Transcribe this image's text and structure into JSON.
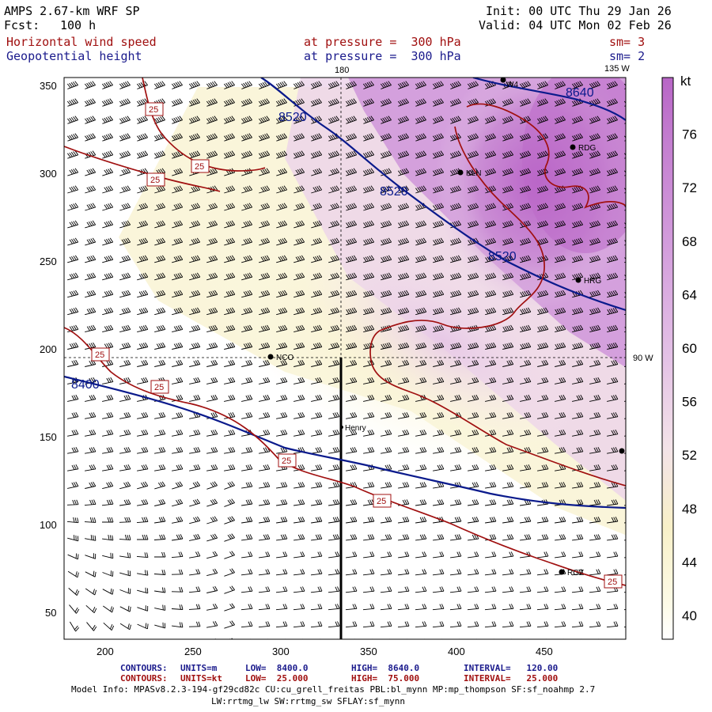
{
  "header": {
    "model": "AMPS 2.67-km WRF SP",
    "fcst_label": "Fcst:",
    "fcst_value": "100 h",
    "init": "Init: 00 UTC Thu 29 Jan 26",
    "valid": "Valid: 04 UTC Mon 02 Feb 26",
    "field1": "Horizontal wind speed",
    "field2": "Geopotential height",
    "pressure1": "at pressure =  300 hPa",
    "pressure2": "at pressure =  300 hPa",
    "sm1": "sm= 3",
    "sm2": "sm= 2"
  },
  "axes": {
    "x_ticks": [
      "200",
      "250",
      "300",
      "350",
      "400",
      "450"
    ],
    "y_ticks": [
      "50",
      "100",
      "150",
      "200",
      "250",
      "300",
      "350"
    ],
    "lon_labels": {
      "top_left": "180",
      "top_right": "135 W",
      "right": "90 W"
    }
  },
  "colorbar": {
    "unit": "kt",
    "ticks": [
      "40",
      "44",
      "48",
      "52",
      "56",
      "60",
      "64",
      "68",
      "72",
      "76"
    ]
  },
  "contour_labels": {
    "height": [
      "8640",
      "8520",
      "8520",
      "8520",
      "8400"
    ],
    "speed": [
      "25",
      "25",
      "25",
      "25",
      "25",
      "25",
      "25",
      "25",
      "25"
    ]
  },
  "stations": [
    "W4",
    "RDG",
    "KLN",
    "HRG",
    "NCO",
    "Henry",
    "RGZ"
  ],
  "footer": {
    "c1_label": "CONTOURS:",
    "c1_units": "UNITS=m",
    "c1_low": "LOW=  8400.0",
    "c1_high": "HIGH=  8640.0",
    "c1_int": "INTERVAL=   120.00",
    "c2_label": "CONTOURS:",
    "c2_units": "UNITS=kt",
    "c2_low": "LOW=  25.000",
    "c2_high": "HIGH=  75.000",
    "c2_int": "INTERVAL=   25.000",
    "model_info": "Model Info: MPASv8.2.3-194-gf29cd82c CU:cu_grell_freitas PBL:bl_mynn MP:mp_thompson SF:sf_noahmp 2.7",
    "model_info2": "LW:rrtmg_lw SW:rrtmg_sw SFLAY:sf_mynn"
  },
  "colors": {
    "height_contour": "#0a1a8c",
    "speed_contour": "#a01010",
    "shade_low": "#fbf7d8",
    "shade_mid": "#f2e0ee",
    "shade_high": "#c070cc"
  }
}
